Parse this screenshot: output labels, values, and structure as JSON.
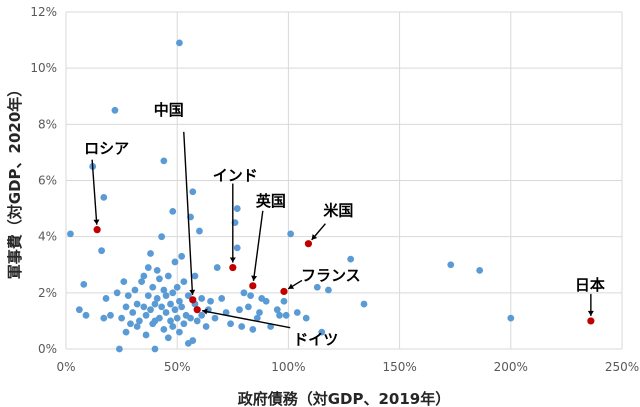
{
  "chart_data": {
    "type": "scatter",
    "xlabel": "政府債務（対GDP、2019年）",
    "ylabel": "軍事費（対GDP、2020年）",
    "xlim": [
      0,
      250
    ],
    "ylim": [
      0,
      12
    ],
    "x_ticks": [
      "0%",
      "50%",
      "100%",
      "150%",
      "200%",
      "250%"
    ],
    "y_ticks": [
      "0%",
      "2%",
      "4%",
      "6%",
      "8%",
      "10%",
      "12%"
    ],
    "grid": "horizontal and vertical",
    "colors": {
      "others": "#5b9bd5",
      "highlight": "#c00000"
    },
    "highlighted": [
      {
        "name": "ロシア",
        "x": 14,
        "y": 4.25
      },
      {
        "name": "中国",
        "x": 57,
        "y": 1.75
      },
      {
        "name": "インド",
        "x": 75,
        "y": 2.9
      },
      {
        "name": "英国",
        "x": 84,
        "y": 2.25
      },
      {
        "name": "米国",
        "x": 109,
        "y": 3.75
      },
      {
        "name": "フランス",
        "x": 98,
        "y": 2.05
      },
      {
        "name": "ドイツ",
        "x": 59,
        "y": 1.4
      },
      {
        "name": "日本",
        "x": 236,
        "y": 1.0
      }
    ],
    "others": [
      [
        2,
        4.1
      ],
      [
        6,
        1.4
      ],
      [
        8,
        2.3
      ],
      [
        9,
        1.2
      ],
      [
        12,
        6.5
      ],
      [
        16,
        3.5
      ],
      [
        17,
        5.4
      ],
      [
        17,
        1.1
      ],
      [
        18,
        1.8
      ],
      [
        20,
        1.2
      ],
      [
        22,
        8.5
      ],
      [
        23,
        2.0
      ],
      [
        24,
        0.0
      ],
      [
        25,
        1.1
      ],
      [
        26,
        2.4
      ],
      [
        27,
        1.5
      ],
      [
        27,
        0.6
      ],
      [
        28,
        1.9
      ],
      [
        29,
        0.9
      ],
      [
        30,
        1.3
      ],
      [
        31,
        2.1
      ],
      [
        32,
        1.6
      ],
      [
        32,
        0.8
      ],
      [
        33,
        1.0
      ],
      [
        34,
        2.4
      ],
      [
        35,
        1.5
      ],
      [
        35,
        2.6
      ],
      [
        36,
        1.2
      ],
      [
        36,
        0.5
      ],
      [
        37,
        2.9
      ],
      [
        37,
        1.9
      ],
      [
        38,
        3.4
      ],
      [
        38,
        1.4
      ],
      [
        39,
        0.9
      ],
      [
        39,
        2.2
      ],
      [
        40,
        1.6
      ],
      [
        40,
        1.0
      ],
      [
        40,
        0.0
      ],
      [
        41,
        2.8
      ],
      [
        41,
        1.8
      ],
      [
        42,
        1.1
      ],
      [
        42,
        2.5
      ],
      [
        43,
        4.0
      ],
      [
        43,
        1.5
      ],
      [
        44,
        0.7
      ],
      [
        44,
        6.7
      ],
      [
        44,
        2.1
      ],
      [
        45,
        1.3
      ],
      [
        45,
        1.9
      ],
      [
        46,
        0.4
      ],
      [
        46,
        2.6
      ],
      [
        47,
        1.0
      ],
      [
        47,
        1.6
      ],
      [
        48,
        2.0
      ],
      [
        48,
        4.9
      ],
      [
        48,
        0.8
      ],
      [
        49,
        1.4
      ],
      [
        49,
        3.1
      ],
      [
        50,
        1.1
      ],
      [
        50,
        2.2
      ],
      [
        51,
        10.9
      ],
      [
        51,
        0.6
      ],
      [
        51,
        1.7
      ],
      [
        52,
        3.3
      ],
      [
        52,
        1.5
      ],
      [
        53,
        2.4
      ],
      [
        53,
        0.9
      ],
      [
        54,
        1.2
      ],
      [
        55,
        0.2
      ],
      [
        55,
        1.9
      ],
      [
        56,
        4.7
      ],
      [
        56,
        1.1
      ],
      [
        57,
        5.6
      ],
      [
        57,
        0.3
      ],
      [
        58,
        1.6
      ],
      [
        58,
        2.6
      ],
      [
        59,
        1.0
      ],
      [
        60,
        4.2
      ],
      [
        61,
        1.8
      ],
      [
        61,
        1.2
      ],
      [
        63,
        0.8
      ],
      [
        64,
        1.4
      ],
      [
        65,
        1.7
      ],
      [
        67,
        1.1
      ],
      [
        68,
        2.9
      ],
      [
        70,
        1.8
      ],
      [
        72,
        1.3
      ],
      [
        74,
        0.9
      ],
      [
        76,
        4.5
      ],
      [
        77,
        5.0
      ],
      [
        77,
        3.6
      ],
      [
        78,
        1.4
      ],
      [
        79,
        0.8
      ],
      [
        80,
        2.0
      ],
      [
        82,
        1.5
      ],
      [
        83,
        1.9
      ],
      [
        84,
        0.7
      ],
      [
        86,
        1.1
      ],
      [
        87,
        1.3
      ],
      [
        88,
        1.8
      ],
      [
        90,
        1.7
      ],
      [
        92,
        0.8
      ],
      [
        95,
        1.4
      ],
      [
        96,
        1.2
      ],
      [
        98,
        1.7
      ],
      [
        99,
        1.2
      ],
      [
        101,
        4.1
      ],
      [
        104,
        1.3
      ],
      [
        108,
        1.1
      ],
      [
        113,
        2.2
      ],
      [
        115,
        0.6
      ],
      [
        118,
        2.1
      ],
      [
        128,
        3.2
      ],
      [
        134,
        1.6
      ],
      [
        173,
        3.0
      ],
      [
        186,
        2.8
      ],
      [
        200,
        1.1
      ]
    ]
  }
}
